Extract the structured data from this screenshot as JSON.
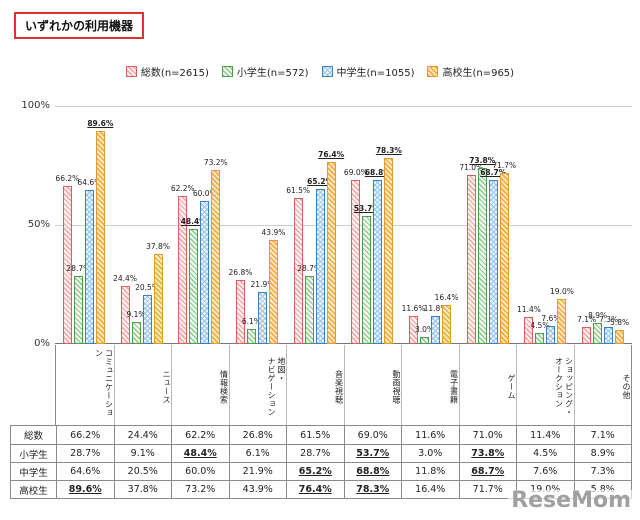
{
  "title": "いずれかの利用機器",
  "watermark": "ReseMom",
  "y_axis": {
    "labels": [
      "100%",
      "50%",
      "0%"
    ]
  },
  "chart_data": {
    "type": "bar",
    "title": "いずれかの利用機器",
    "xlabel": "",
    "ylabel": "",
    "ylim": [
      0,
      100
    ],
    "grid": "horizontal",
    "legend_position": "top",
    "categories": [
      "コミュニケーション",
      "ニュース",
      "情報検索",
      "地図・\nナビゲーション",
      "音楽視聴",
      "動画視聴",
      "電子書籍",
      "ゲーム",
      "ショッピング・\nオークション",
      "その他"
    ],
    "series": [
      {
        "name": "総数(n=2615)",
        "row_label": "総数",
        "border": "#d65f5f",
        "hatch": "#eda2a2",
        "fill": "#fdf0f0",
        "pattern": "diag",
        "values": [
          66.2,
          24.4,
          62.2,
          26.8,
          61.5,
          69.0,
          11.6,
          71.0,
          11.4,
          7.1
        ],
        "emphasis": [
          0,
          0,
          0,
          0,
          0,
          0,
          0,
          0,
          0,
          0
        ]
      },
      {
        "name": "小学生(n=572)",
        "row_label": "小学生",
        "border": "#48a048",
        "hatch": "#8cc88c",
        "fill": "#f2faf2",
        "pattern": "diag",
        "values": [
          28.7,
          9.1,
          48.4,
          6.1,
          28.7,
          53.7,
          3.0,
          73.8,
          4.5,
          8.9
        ],
        "emphasis": [
          0,
          0,
          1,
          0,
          0,
          1,
          0,
          1,
          0,
          0
        ]
      },
      {
        "name": "中学生(n=1055)",
        "row_label": "中学生",
        "border": "#3b7fc4",
        "hatch": "#9bc3e8",
        "fill": "#eef5fc",
        "pattern": "cross",
        "values": [
          64.6,
          20.5,
          60.0,
          21.9,
          65.2,
          68.8,
          11.8,
          68.7,
          7.6,
          7.3
        ],
        "emphasis": [
          0,
          0,
          0,
          0,
          1,
          1,
          0,
          1,
          0,
          0
        ]
      },
      {
        "name": "高校生(n=965)",
        "row_label": "高校生",
        "border": "#e39b2d",
        "hatch": "#f3b34c",
        "fill": "#fdf3dd",
        "pattern": "dense",
        "values": [
          89.6,
          37.8,
          73.2,
          43.9,
          76.4,
          78.3,
          16.4,
          71.7,
          19.0,
          5.8
        ],
        "emphasis": [
          1,
          0,
          0,
          0,
          1,
          1,
          0,
          0,
          0,
          0
        ]
      }
    ]
  }
}
